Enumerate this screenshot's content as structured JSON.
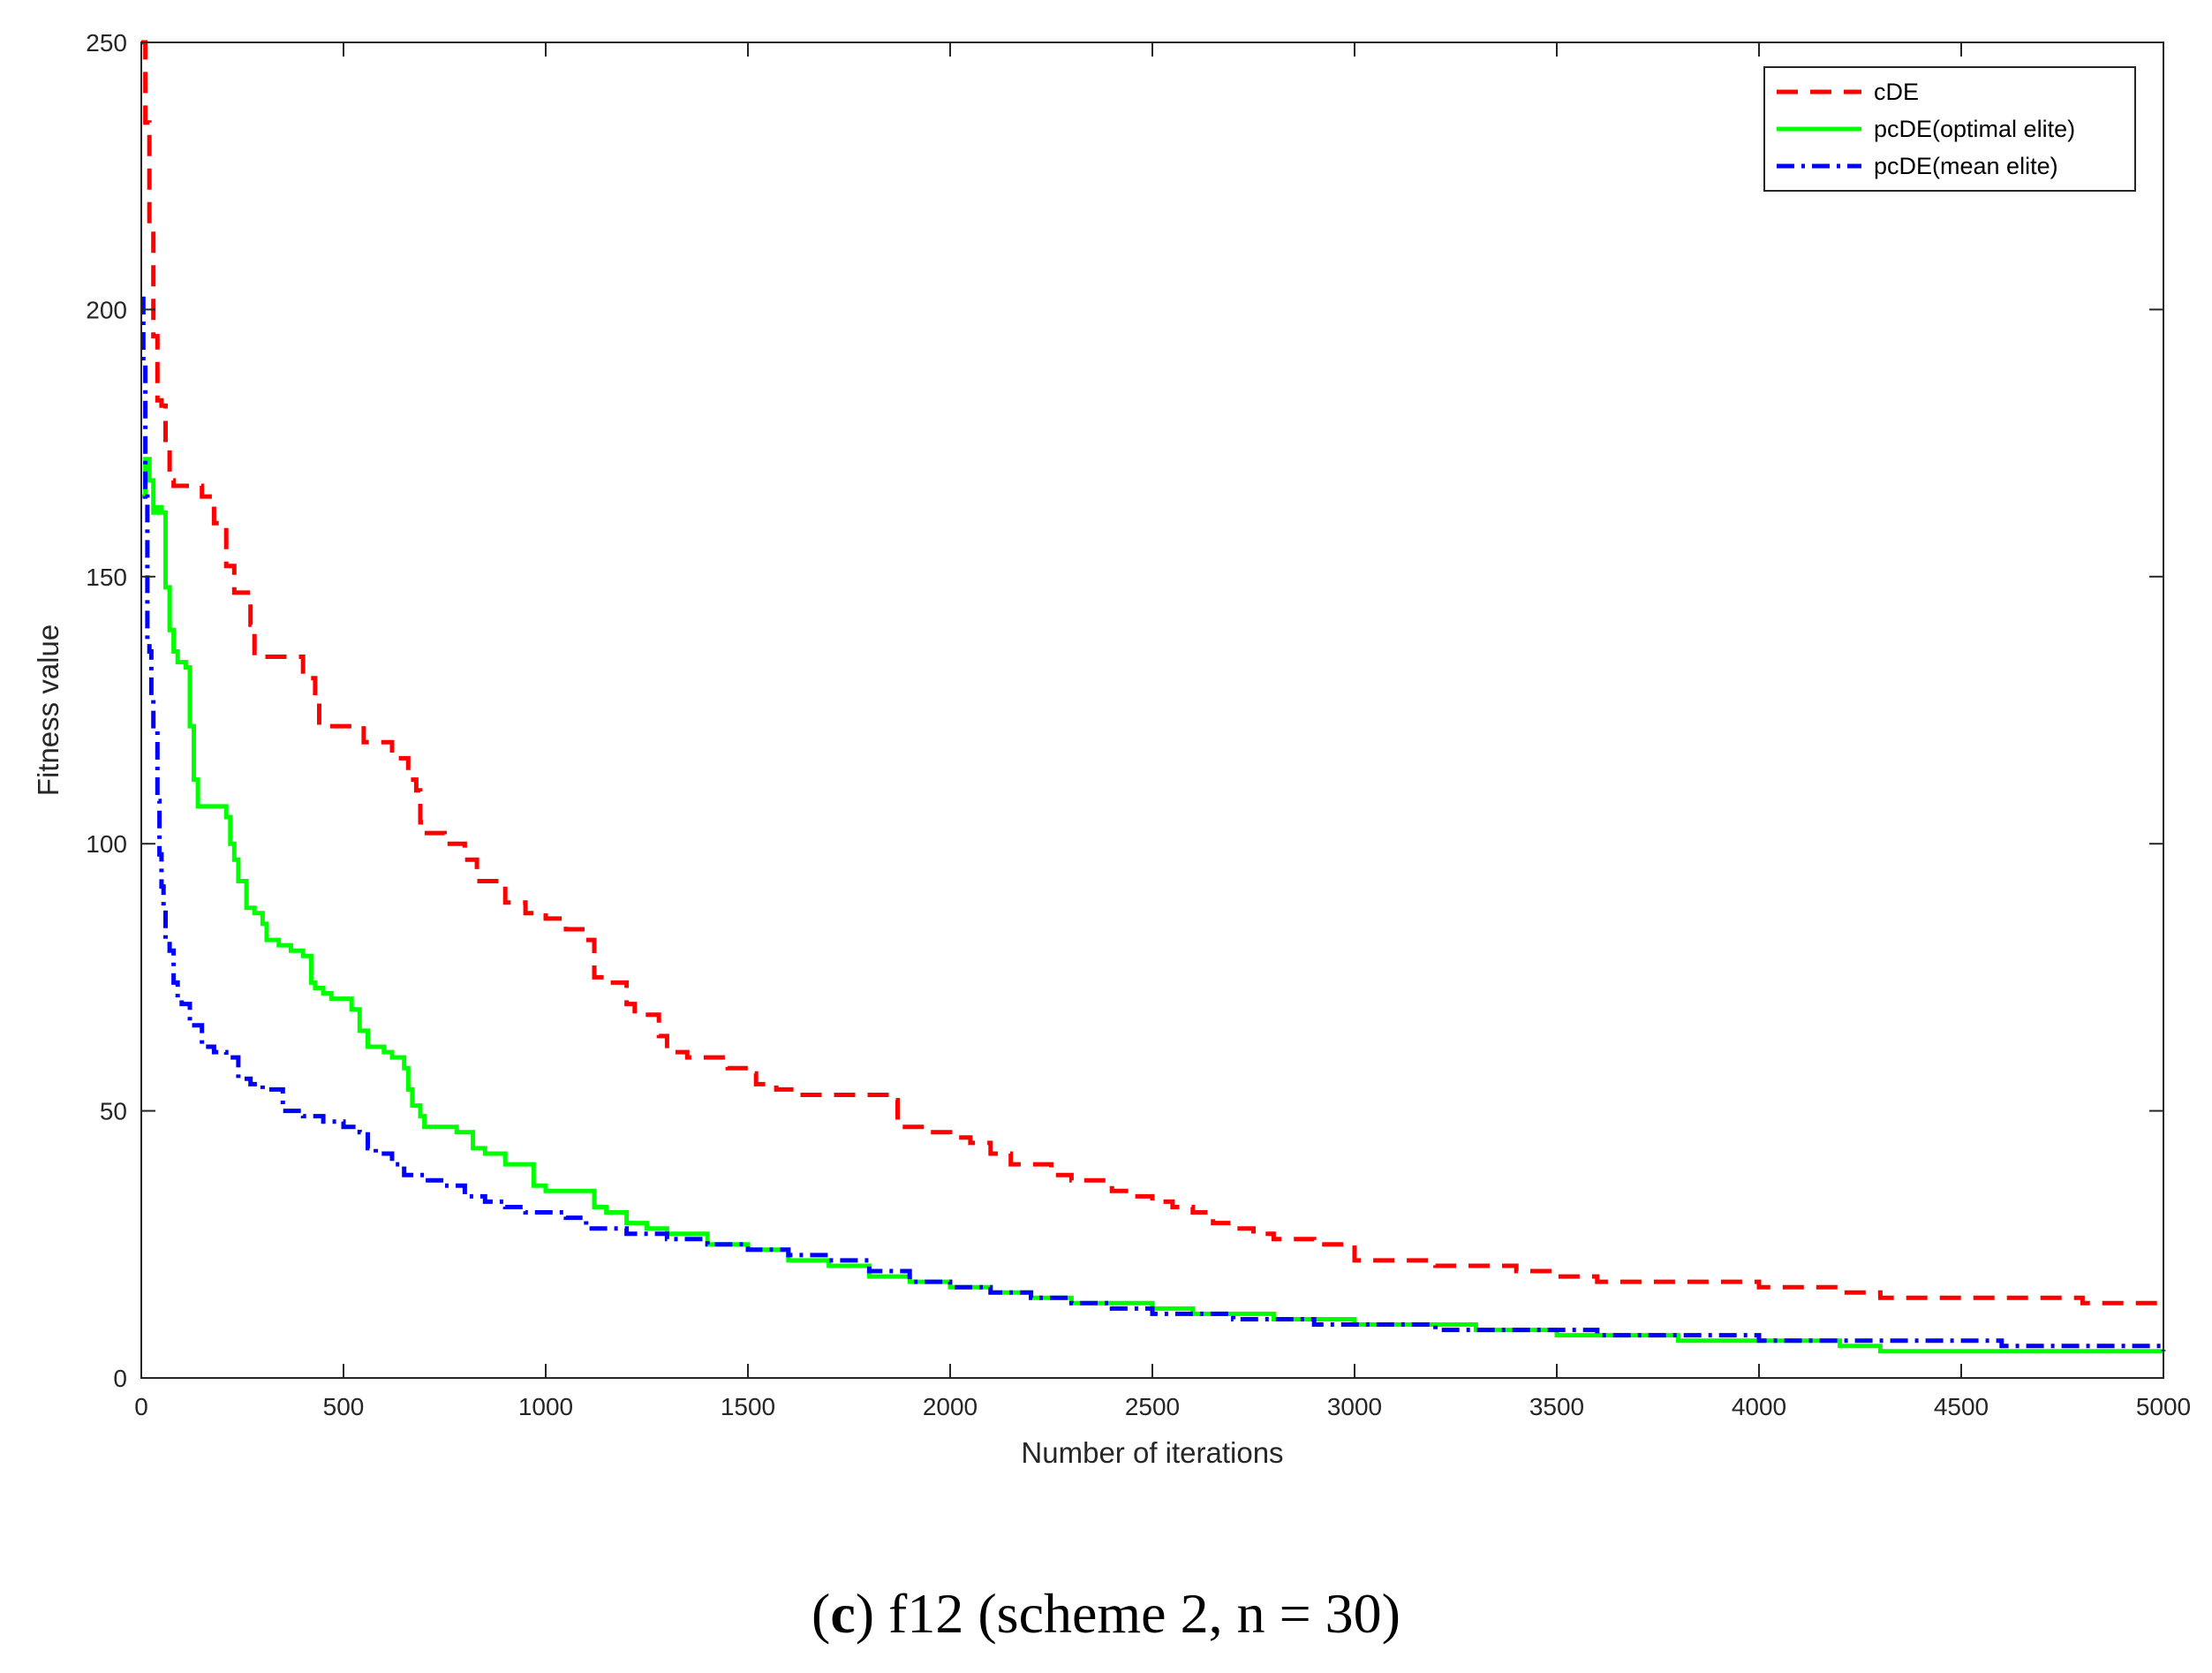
{
  "caption": {
    "open_paren": "(",
    "letter": "c",
    "rest": ") f12 (scheme 2, n = 30)"
  },
  "colors": {
    "cDE": "#ff0000",
    "optimal": "#00ff00",
    "mean": "#0000ff",
    "axis": "#262626"
  },
  "chart_data": {
    "type": "line",
    "title": "",
    "xlabel": "Number of iterations",
    "ylabel": "Fitness value",
    "xlim": [
      0,
      5000
    ],
    "ylim": [
      0,
      250
    ],
    "xticks": [
      0,
      500,
      1000,
      1500,
      2000,
      2500,
      3000,
      3500,
      4000,
      4500,
      5000
    ],
    "yticks": [
      0,
      50,
      100,
      150,
      200,
      250
    ],
    "grid": false,
    "legend_position": "top-right",
    "series": [
      {
        "name": "cDE",
        "style": "dashed",
        "color": "#ff0000",
        "x": [
          0,
          10,
          20,
          30,
          40,
          50,
          60,
          70,
          80,
          150,
          180,
          210,
          230,
          270,
          280,
          370,
          400,
          430,
          440,
          500,
          550,
          620,
          660,
          680,
          690,
          700,
          750,
          800,
          830,
          850,
          900,
          950,
          1000,
          1050,
          1100,
          1120,
          1150,
          1200,
          1220,
          1280,
          1300,
          1350,
          1450,
          1500,
          1520,
          1570,
          1620,
          1700,
          1850,
          1870,
          1900,
          1950,
          2000,
          2050,
          2100,
          2150,
          2200,
          2250,
          2300,
          2400,
          2450,
          2500,
          2550,
          2600,
          2650,
          2700,
          2750,
          2800,
          2900,
          3000,
          3100,
          3200,
          3300,
          3400,
          3500,
          3600,
          3800,
          4000,
          4100,
          4200,
          4300,
          4500,
          4600,
          4800,
          5000
        ],
        "values": [
          250,
          235,
          215,
          195,
          183,
          182,
          175,
          168,
          167,
          165,
          160,
          152,
          147,
          141,
          135,
          135,
          131,
          127,
          122,
          122,
          119,
          116,
          112,
          110,
          104,
          102,
          100,
          97,
          93,
          93,
          89,
          87,
          86,
          84,
          82,
          75,
          74,
          70,
          68,
          64,
          61,
          60,
          58,
          57,
          55,
          54,
          53,
          53,
          52,
          47,
          47,
          46,
          45,
          44,
          42,
          40,
          40,
          38,
          37,
          35,
          34,
          33,
          32,
          31,
          29,
          28,
          27,
          26,
          25,
          22,
          22,
          21,
          21,
          20,
          19,
          18,
          18,
          17,
          17,
          16,
          15,
          15,
          15,
          14,
          14
        ]
      },
      {
        "name": "pcDE(optimal elite)",
        "style": "solid",
        "color": "#00ff00",
        "x": [
          0,
          10,
          20,
          30,
          40,
          50,
          60,
          70,
          80,
          90,
          110,
          120,
          130,
          140,
          160,
          210,
          220,
          230,
          240,
          260,
          280,
          300,
          310,
          340,
          370,
          400,
          420,
          430,
          450,
          470,
          500,
          520,
          540,
          560,
          600,
          620,
          650,
          660,
          670,
          690,
          700,
          720,
          750,
          780,
          800,
          820,
          850,
          900,
          950,
          970,
          1000,
          1050,
          1100,
          1120,
          1150,
          1200,
          1250,
          1300,
          1400,
          1500,
          1600,
          1700,
          1800,
          1900,
          2000,
          2100,
          2200,
          2300,
          2400,
          2450,
          2500,
          2600,
          2700,
          2800,
          3000,
          3100,
          3300,
          3500,
          3800,
          4000,
          4100,
          4200,
          4300,
          4500,
          5000
        ],
        "values": [
          165,
          172,
          168,
          162,
          163,
          162,
          148,
          140,
          136,
          134,
          133,
          122,
          112,
          107,
          107,
          105,
          100,
          97,
          93,
          88,
          87,
          85,
          82,
          81,
          80,
          79,
          74,
          73,
          72,
          71,
          71,
          69,
          65,
          62,
          61,
          60,
          58,
          54,
          51,
          49,
          47,
          47,
          47,
          46,
          46,
          43,
          42,
          40,
          40,
          36,
          35,
          35,
          35,
          32,
          31,
          29,
          28,
          27,
          25,
          24,
          22,
          21,
          19,
          18,
          17,
          16,
          15,
          14,
          14,
          14,
          13,
          12,
          12,
          11,
          10,
          10,
          9,
          8,
          7,
          7,
          7,
          6,
          5,
          5,
          5
        ]
      },
      {
        "name": "pcDE(mean elite)",
        "style": "dashdot",
        "color": "#0000ff",
        "x": [
          0,
          5,
          10,
          15,
          20,
          25,
          30,
          40,
          45,
          50,
          55,
          60,
          70,
          80,
          90,
          100,
          120,
          150,
          180,
          210,
          240,
          270,
          300,
          350,
          400,
          450,
          500,
          540,
          560,
          580,
          620,
          650,
          700,
          750,
          800,
          850,
          900,
          950,
          1000,
          1050,
          1100,
          1200,
          1300,
          1400,
          1500,
          1600,
          1700,
          1800,
          1900,
          2000,
          2100,
          2200,
          2300,
          2400,
          2500,
          2600,
          2700,
          2800,
          2900,
          3000,
          3200,
          3400,
          3600,
          3800,
          4000,
          4200,
          4400,
          4600,
          4800,
          5000
        ],
        "values": [
          202,
          190,
          165,
          138,
          136,
          127,
          122,
          108,
          98,
          92,
          88,
          82,
          80,
          74,
          71,
          70,
          66,
          62,
          61,
          60,
          56,
          55,
          54,
          50,
          49,
          48,
          47,
          46,
          43,
          42,
          40,
          38,
          37,
          36,
          34,
          33,
          32,
          31,
          31,
          30,
          28,
          27,
          26,
          25,
          24,
          23,
          22,
          20,
          18,
          17,
          16,
          15,
          14,
          13,
          12,
          12,
          11,
          11,
          10,
          10,
          9,
          9,
          8,
          8,
          7,
          7,
          7,
          6,
          6,
          5
        ]
      }
    ]
  }
}
